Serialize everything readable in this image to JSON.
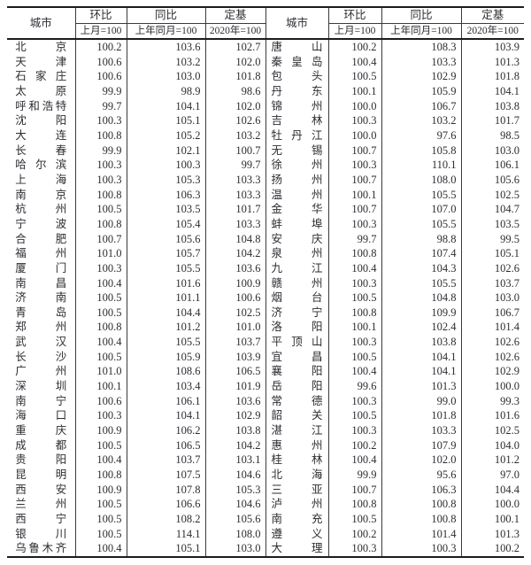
{
  "table": {
    "headers": {
      "city": "城市",
      "mom": "环比",
      "mom_sub": "上月=100",
      "yoy": "同比",
      "yoy_sub": "上年同月=100",
      "base": "定基",
      "base_sub": "2020年=100"
    },
    "rows": [
      [
        "北京",
        "100.2",
        "103.6",
        "102.7",
        "唐山",
        "100.2",
        "108.3",
        "103.9"
      ],
      [
        "天津",
        "100.6",
        "103.2",
        "102.0",
        "秦皇岛",
        "100.4",
        "103.3",
        "101.3"
      ],
      [
        "石家庄",
        "100.6",
        "103.0",
        "101.8",
        "包头",
        "100.5",
        "102.9",
        "101.8"
      ],
      [
        "太原",
        "99.9",
        "98.9",
        "98.6",
        "丹东",
        "100.1",
        "105.9",
        "104.1"
      ],
      [
        "呼和浩特",
        "99.7",
        "104.1",
        "102.0",
        "锦州",
        "100.0",
        "106.7",
        "103.8"
      ],
      [
        "沈阳",
        "100.3",
        "105.1",
        "102.6",
        "吉林",
        "100.3",
        "103.2",
        "101.7"
      ],
      [
        "大连",
        "100.8",
        "105.2",
        "103.2",
        "牡丹江",
        "100.0",
        "97.6",
        "98.5"
      ],
      [
        "长春",
        "99.9",
        "102.1",
        "100.7",
        "无锡",
        "100.7",
        "105.8",
        "103.0"
      ],
      [
        "哈尔滨",
        "100.3",
        "100.3",
        "99.7",
        "徐州",
        "100.3",
        "110.1",
        "106.1"
      ],
      [
        "上海",
        "100.3",
        "105.3",
        "103.3",
        "扬州",
        "100.7",
        "108.0",
        "105.6"
      ],
      [
        "南京",
        "100.8",
        "106.3",
        "103.3",
        "温州",
        "100.1",
        "105.5",
        "102.5"
      ],
      [
        "杭州",
        "100.5",
        "103.5",
        "101.7",
        "金华",
        "100.7",
        "107.0",
        "104.7"
      ],
      [
        "宁波",
        "100.8",
        "105.4",
        "103.3",
        "蚌埠",
        "100.3",
        "105.5",
        "103.5"
      ],
      [
        "合肥",
        "100.7",
        "105.6",
        "104.8",
        "安庆",
        "99.7",
        "98.8",
        "99.5"
      ],
      [
        "福州",
        "101.0",
        "105.7",
        "104.2",
        "泉州",
        "100.8",
        "107.4",
        "105.1"
      ],
      [
        "厦门",
        "100.3",
        "105.5",
        "103.6",
        "九江",
        "100.4",
        "104.3",
        "102.6"
      ],
      [
        "南昌",
        "100.4",
        "101.6",
        "100.9",
        "赣州",
        "100.3",
        "105.5",
        "103.7"
      ],
      [
        "济南",
        "100.5",
        "101.1",
        "100.6",
        "烟台",
        "100.5",
        "104.8",
        "103.0"
      ],
      [
        "青岛",
        "100.5",
        "104.4",
        "102.5",
        "济宁",
        "100.8",
        "109.9",
        "106.7"
      ],
      [
        "郑州",
        "100.8",
        "101.2",
        "101.0",
        "洛阳",
        "100.1",
        "102.4",
        "101.4"
      ],
      [
        "武汉",
        "100.4",
        "105.5",
        "103.7",
        "平顶山",
        "100.3",
        "103.8",
        "102.6"
      ],
      [
        "长沙",
        "100.5",
        "105.9",
        "103.9",
        "宜昌",
        "100.5",
        "104.1",
        "102.6"
      ],
      [
        "广州",
        "101.0",
        "108.6",
        "106.5",
        "襄阳",
        "100.4",
        "104.1",
        "102.9"
      ],
      [
        "深圳",
        "100.1",
        "103.4",
        "101.9",
        "岳阳",
        "99.6",
        "101.3",
        "100.0"
      ],
      [
        "南宁",
        "100.6",
        "106.1",
        "103.6",
        "常德",
        "100.3",
        "99.0",
        "99.3"
      ],
      [
        "海口",
        "100.3",
        "104.1",
        "102.9",
        "韶关",
        "100.5",
        "101.8",
        "101.6"
      ],
      [
        "重庆",
        "100.9",
        "106.2",
        "103.8",
        "湛江",
        "100.3",
        "103.3",
        "102.5"
      ],
      [
        "成都",
        "100.5",
        "106.5",
        "104.2",
        "惠州",
        "100.2",
        "107.9",
        "104.0"
      ],
      [
        "贵阳",
        "100.4",
        "103.7",
        "103.1",
        "桂林",
        "100.4",
        "102.0",
        "101.2"
      ],
      [
        "昆明",
        "100.8",
        "107.5",
        "104.6",
        "北海",
        "99.9",
        "95.6",
        "97.0"
      ],
      [
        "西安",
        "100.9",
        "107.8",
        "105.3",
        "三亚",
        "100.7",
        "106.3",
        "104.4"
      ],
      [
        "兰州",
        "100.5",
        "106.6",
        "104.6",
        "泸州",
        "100.8",
        "100.8",
        "100.0"
      ],
      [
        "西宁",
        "100.5",
        "108.2",
        "105.6",
        "南充",
        "100.5",
        "100.8",
        "100.1"
      ],
      [
        "银川",
        "100.5",
        "114.1",
        "108.0",
        "遵义",
        "100.2",
        "101.4",
        "101.3"
      ],
      [
        "乌鲁木齐",
        "100.4",
        "105.1",
        "103.0",
        "大理",
        "100.3",
        "100.3",
        "100.2"
      ]
    ]
  },
  "colors": {
    "border_thick": "#1c1c1c",
    "border_thin": "#3a3a3a",
    "text": "#2d2d33",
    "background": "#ffffff"
  }
}
